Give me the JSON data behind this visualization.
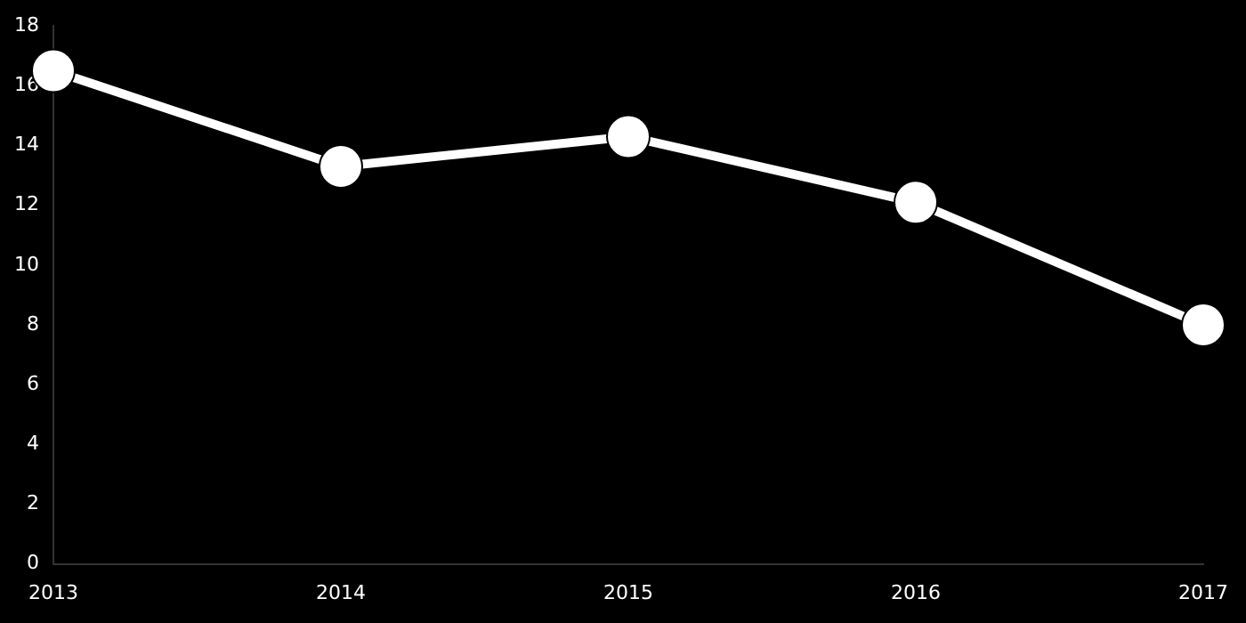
{
  "chart_data": {
    "type": "line",
    "categories": [
      "2013",
      "2014",
      "2015",
      "2016",
      "2017"
    ],
    "series": [
      {
        "color": "#ffffff",
        "values": [
          16.5,
          13.3,
          14.3,
          12.1,
          8.0
        ]
      }
    ],
    "ylim": [
      0,
      18
    ],
    "yticks": [
      0,
      2,
      4,
      6,
      8,
      10,
      12,
      14,
      16,
      18
    ],
    "grid": false,
    "legend": false,
    "marker": "circle",
    "line_style": "solid"
  }
}
